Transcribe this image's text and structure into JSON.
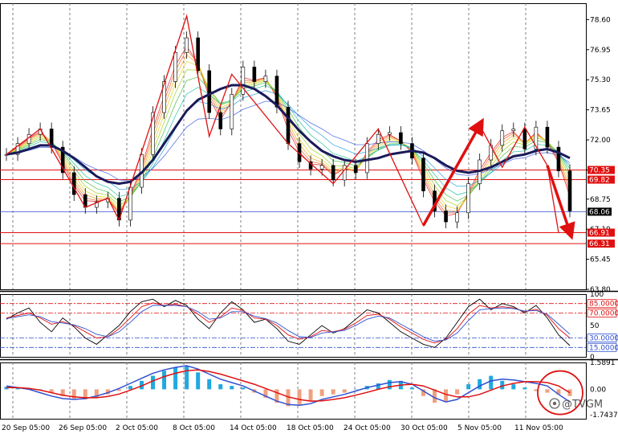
{
  "chart_data": [
    {
      "type": "line",
      "panel": "price",
      "title": "",
      "x_tick_labels": [
        "20 Sep 05:00",
        "26 Sep 05:00",
        "2 Oct 05:00",
        "8 Oct 05:00",
        "14 Oct 05:00",
        "18 Oct 05:00",
        "24 Oct 05:00",
        "30 Oct 05:00",
        "5 Nov 05:00",
        "11 Nov 05:00"
      ],
      "y_tick_labels": [
        "78.60",
        "76.95",
        "75.30",
        "73.65",
        "72.00",
        "70.35",
        "68.75",
        "67.10",
        "65.45",
        "63.80"
      ],
      "ylim": [
        63.8,
        79.5
      ],
      "horizontal_levels": [
        {
          "label": "70.35",
          "value": 70.35,
          "color": "#e01010"
        },
        {
          "label": "69.82",
          "value": 69.82,
          "color": "#e01010"
        },
        {
          "label": "66.91",
          "value": 66.91,
          "color": "#e01010"
        },
        {
          "label": "66.31",
          "value": 66.31,
          "color": "#e01010"
        }
      ],
      "current_price": {
        "label": "68.06",
        "value": 68.06,
        "line_color": "#3050d0"
      },
      "series": [
        {
          "role": "close",
          "values": [
            71.2,
            71.8,
            72.3,
            72.6,
            71.6,
            70.2,
            69.0,
            68.3,
            68.6,
            68.8,
            67.6,
            69.4,
            71.2,
            73.5,
            75.2,
            76.8,
            77.6,
            75.8,
            73.5,
            72.6,
            74.5,
            76.0,
            75.2,
            75.5,
            73.8,
            71.8,
            70.8,
            70.4,
            70.6,
            69.8,
            70.6,
            70.2,
            71.8,
            72.3,
            72.4,
            71.8,
            71.0,
            69.2,
            68.1,
            67.5,
            68.0,
            69.6,
            70.9,
            71.7,
            72.5,
            72.6,
            71.5,
            72.7,
            71.6,
            70.3,
            68.1
          ]
        },
        {
          "role": "moving-average",
          "values": [
            71.2,
            71.3,
            71.5,
            71.7,
            71.7,
            71.4,
            71.0,
            70.5,
            70.0,
            69.7,
            69.6,
            69.7,
            70.2,
            70.9,
            71.8,
            72.7,
            73.6,
            74.2,
            74.5,
            74.8,
            75.0,
            75.0,
            74.8,
            74.4,
            73.9,
            73.2,
            72.5,
            71.9,
            71.4,
            71.1,
            70.9,
            70.8,
            70.9,
            71.0,
            71.2,
            71.3,
            71.4,
            71.3,
            71.0,
            70.6,
            70.3,
            70.2,
            70.3,
            70.5,
            70.8,
            71.1,
            71.2,
            71.4,
            71.5,
            71.3,
            71.0
          ]
        }
      ],
      "annotations": [
        {
          "type": "zigzag",
          "color": "#e01010",
          "points": [
            [
              0,
              71.2
            ],
            [
              3,
              72.6
            ],
            [
              7,
              68.3
            ],
            [
              9,
              68.8
            ],
            [
              10,
              67.6
            ],
            [
              16,
              78.8
            ],
            [
              18,
              72.2
            ],
            [
              20,
              75.6
            ],
            [
              25,
              71.8
            ],
            [
              29,
              69.6
            ],
            [
              33,
              72.6
            ],
            [
              37,
              67.3
            ],
            [
              42,
              72.8
            ],
            [
              44,
              70.5
            ],
            [
              46,
              72.7
            ],
            [
              48,
              70.6
            ],
            [
              49,
              66.9
            ]
          ]
        },
        {
          "type": "arrow",
          "color": "#e01010",
          "from": [
            37,
            67.3
          ],
          "to": [
            42,
            72.8
          ]
        },
        {
          "type": "arrow",
          "color": "#e01010",
          "from": [
            48,
            70.6
          ],
          "to": [
            50,
            66.95
          ]
        }
      ]
    },
    {
      "type": "line",
      "panel": "stochastic",
      "title": "",
      "y_tick_labels": [
        "100",
        "85.0000",
        "70.0000",
        "50",
        "30.0000",
        "15.0000",
        "0"
      ],
      "ylim": [
        0,
        100
      ],
      "levels": [
        {
          "label": "85.0000",
          "value": 85,
          "color": "#e01010"
        },
        {
          "label": "70.0000",
          "value": 70,
          "color": "#e01010"
        },
        {
          "label": "30.0000",
          "value": 30,
          "color": "#3050d0"
        },
        {
          "label": "15.0000",
          "value": 15,
          "color": "#3050d0"
        }
      ],
      "series": [
        {
          "role": "fast",
          "color": "#000000",
          "values": [
            60,
            70,
            78,
            55,
            40,
            62,
            48,
            30,
            20,
            35,
            50,
            72,
            88,
            92,
            80,
            90,
            82,
            60,
            45,
            70,
            88,
            75,
            55,
            60,
            45,
            25,
            20,
            35,
            50,
            38,
            45,
            60,
            75,
            70,
            55,
            40,
            30,
            20,
            15,
            30,
            55,
            80,
            92,
            75,
            85,
            80,
            70,
            82,
            62,
            35,
            18
          ]
        },
        {
          "role": "slow",
          "color": "#e01010",
          "values": [
            62,
            66,
            70,
            62,
            52,
            56,
            50,
            40,
            30,
            32,
            45,
            62,
            80,
            86,
            82,
            84,
            80,
            68,
            55,
            64,
            78,
            74,
            62,
            60,
            50,
            35,
            28,
            32,
            42,
            40,
            44,
            54,
            66,
            68,
            60,
            48,
            38,
            28,
            22,
            28,
            45,
            68,
            82,
            78,
            80,
            78,
            72,
            76,
            66,
            45,
            30
          ]
        },
        {
          "role": "signal",
          "color": "#3050d0",
          "values": [
            61,
            64,
            67,
            64,
            56,
            54,
            51,
            45,
            36,
            32,
            40,
            55,
            72,
            82,
            82,
            82,
            80,
            72,
            60,
            62,
            72,
            72,
            65,
            61,
            54,
            42,
            32,
            31,
            38,
            40,
            42,
            50,
            60,
            65,
            62,
            52,
            42,
            32,
            25,
            27,
            38,
            58,
            75,
            77,
            78,
            77,
            73,
            74,
            68,
            52,
            36
          ]
        }
      ]
    },
    {
      "type": "bar",
      "panel": "macd",
      "title": "",
      "y_tick_labels": [
        "1.5891",
        "0.00",
        "-1.7437"
      ],
      "ylim": [
        -1.7437,
        1.5891
      ],
      "histogram": [
        0.15,
        0.1,
        0.05,
        0.0,
        -0.2,
        -0.4,
        -0.55,
        -0.6,
        -0.5,
        -0.3,
        -0.1,
        0.2,
        0.5,
        0.8,
        1.1,
        1.3,
        1.4,
        1.0,
        0.6,
        0.3,
        0.2,
        0.1,
        -0.2,
        -0.5,
        -0.8,
        -1.0,
        -0.9,
        -0.7,
        -0.4,
        -0.3,
        -0.2,
        0.0,
        0.2,
        0.35,
        0.55,
        0.5,
        0.1,
        -0.4,
        -0.8,
        -0.7,
        -0.3,
        0.3,
        0.6,
        0.8,
        0.5,
        0.3,
        0.1,
        -0.1,
        -0.2,
        -0.3,
        -0.4
      ],
      "series": [
        {
          "role": "macd",
          "color": "#3050d0",
          "values": [
            0.2,
            0.1,
            0.0,
            -0.2,
            -0.4,
            -0.55,
            -0.6,
            -0.55,
            -0.4,
            -0.2,
            0.05,
            0.35,
            0.65,
            0.95,
            1.15,
            1.3,
            1.4,
            1.2,
            0.9,
            0.6,
            0.4,
            0.2,
            -0.1,
            -0.4,
            -0.7,
            -0.9,
            -0.95,
            -0.85,
            -0.6,
            -0.45,
            -0.3,
            -0.1,
            0.1,
            0.25,
            0.4,
            0.45,
            0.3,
            -0.1,
            -0.5,
            -0.75,
            -0.6,
            -0.2,
            0.2,
            0.5,
            0.6,
            0.55,
            0.45,
            0.35,
            0.2,
            -0.3,
            -0.75
          ]
        },
        {
          "role": "signal",
          "color": "#e01010",
          "values": [
            0.1,
            0.1,
            0.05,
            -0.05,
            -0.2,
            -0.35,
            -0.45,
            -0.5,
            -0.5,
            -0.42,
            -0.28,
            -0.05,
            0.2,
            0.5,
            0.75,
            0.95,
            1.1,
            1.15,
            1.05,
            0.9,
            0.7,
            0.5,
            0.3,
            0.05,
            -0.2,
            -0.45,
            -0.6,
            -0.7,
            -0.68,
            -0.6,
            -0.5,
            -0.35,
            -0.18,
            0.0,
            0.15,
            0.25,
            0.3,
            0.2,
            -0.05,
            -0.3,
            -0.45,
            -0.45,
            -0.3,
            -0.05,
            0.2,
            0.35,
            0.45,
            0.45,
            0.4,
            0.2,
            -0.2
          ]
        }
      ],
      "highlight": {
        "shape": "circle",
        "color": "#e01010"
      }
    }
  ],
  "watermark": "@TVGM",
  "colors": {
    "bull": "#20a8e0",
    "bear": "#f0a080",
    "level": "#e01010",
    "price": "#3050d0",
    "grid": "#606060"
  }
}
